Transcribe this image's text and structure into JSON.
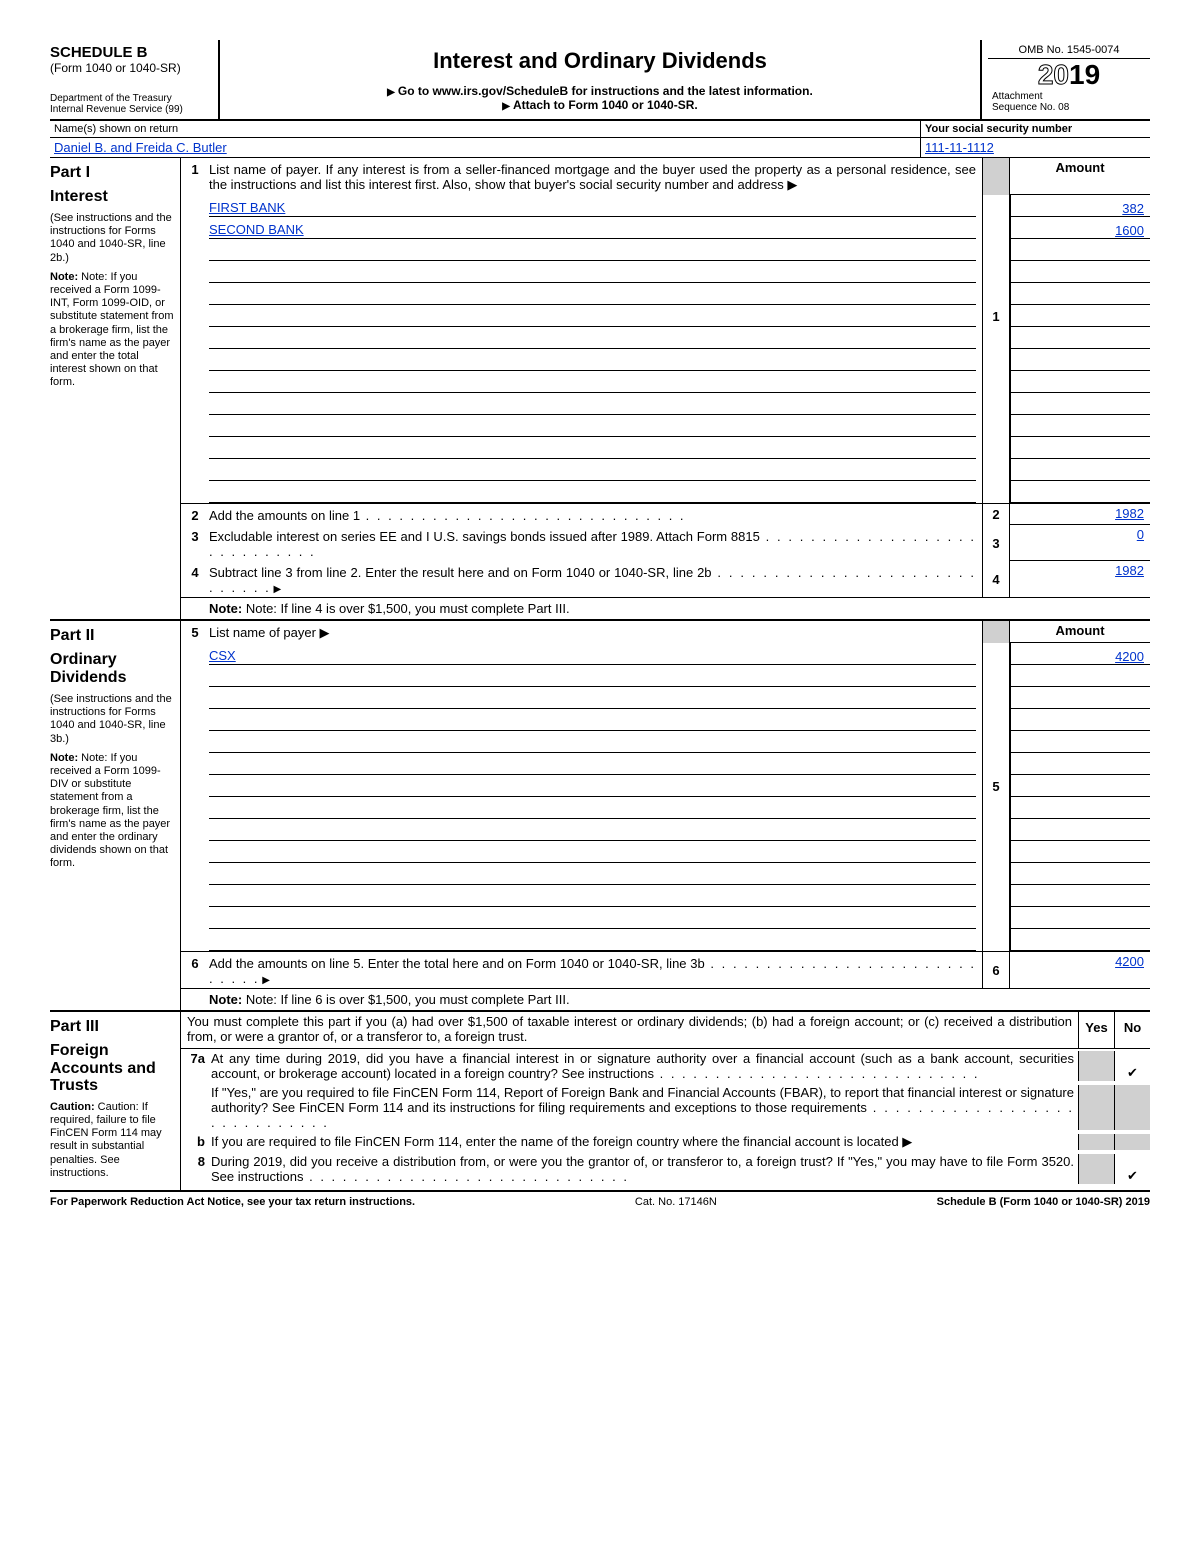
{
  "header": {
    "schedule": "SCHEDULE B",
    "form_ref": "(Form 1040 or 1040-SR)",
    "dept": "Department of the Treasury\nInternal Revenue Service (99)",
    "title": "Interest and Ordinary Dividends",
    "hint1": "Go to www.irs.gov/ScheduleB for instructions and the latest information.",
    "hint2": "Attach to Form 1040 or 1040-SR.",
    "omb": "OMB No. 1545-0074",
    "year_outline": "20",
    "year_solid": "19",
    "attach": "Attachment",
    "seq": "Sequence No. 08"
  },
  "name_labels": {
    "name": "Name(s) shown on return",
    "ssn": "Your social security number"
  },
  "filer": {
    "name": "Daniel B. and Freida C. Butler",
    "ssn": "111-11-1112"
  },
  "part1": {
    "heading": "Part I",
    "sub": "Interest",
    "note1": "(See instructions and the instructions for Forms 1040 and 1040-SR, line 2b.)",
    "note2": "Note: If you received a Form 1099-INT, Form 1099-OID, or substitute statement from a brokerage firm, list the firm's name as the payer and enter the total interest shown on that form.",
    "l1": "List name of payer. If any interest is from a seller-financed mortgage and the buyer used the property as a personal residence, see the instructions and list this interest first. Also, show that buyer's social security number and address ▶",
    "amount_hdr": "Amount",
    "payers": [
      {
        "name": "FIRST BANK",
        "amount": "382"
      },
      {
        "name": "SECOND BANK",
        "amount": "1600"
      }
    ],
    "blank_rows": 12,
    "l2": "Add the amounts on line 1",
    "l2_amt": "1982",
    "l3": "Excludable interest on series EE and I U.S. savings bonds issued after 1989. Attach Form 8815",
    "l3_amt": "0",
    "l4": "Subtract line 3 from line 2. Enter the result here and on Form 1040 or 1040-SR, line 2b",
    "l4_amt": "1982",
    "note_bottom": "Note: If line 4 is over $1,500, you must complete Part III."
  },
  "part2": {
    "heading": "Part II",
    "sub": "Ordinary Dividends",
    "note1": "(See instructions and the instructions for Forms 1040 and 1040-SR, line 3b.)",
    "note2": "Note: If you received a Form 1099-DIV or substitute statement from a brokerage firm, list the firm's name as the payer and enter the ordinary dividends shown on that form.",
    "l5": "List name of payer ▶",
    "amount_hdr": "Amount",
    "payers": [
      {
        "name": "CSX",
        "amount": "4200"
      }
    ],
    "blank_rows": 13,
    "l6": "Add the amounts on line 5. Enter the total here and on Form 1040 or 1040-SR, line 3b",
    "l6_amt": "4200",
    "note_bottom": "Note: If line 6 is over $1,500, you must complete Part III."
  },
  "part3": {
    "heading": "Part III",
    "sub": "Foreign Accounts and Trusts",
    "caution": "Caution: If required, failure to file FinCEN Form 114 may result in substantial penalties. See instructions.",
    "intro": "You must complete this part if you (a) had over $1,500 of taxable interest or ordinary dividends; (b) had a foreign account; or (c) received a distribution from, or were a grantor of, or a transferor to, a foreign trust.",
    "yes": "Yes",
    "no": "No",
    "q7a": "At any time during 2019, did you have a financial interest in or signature authority over a financial account (such as a bank account, securities account, or brokerage account) located in a foreign country? See instructions",
    "q7a_ans": "no",
    "q7a2": "If \"Yes,\" are you required to file FinCEN Form 114, Report of Foreign Bank and Financial Accounts (FBAR), to report that financial interest or signature authority? See FinCEN Form 114 and its instructions for filing requirements and exceptions to those requirements",
    "q7b": "If you are required to file FinCEN Form 114, enter the name of the foreign country where the financial account is located ▶",
    "q8": "During 2019, did you receive a distribution from, or were you the grantor of, or transferor to, a foreign trust? If \"Yes,\" you may have to file Form 3520. See instructions",
    "q8_ans": "no"
  },
  "footer": {
    "left": "For Paperwork Reduction Act Notice, see your tax return instructions.",
    "mid": "Cat. No. 17146N",
    "right": "Schedule B (Form 1040 or 1040-SR) 2019"
  }
}
